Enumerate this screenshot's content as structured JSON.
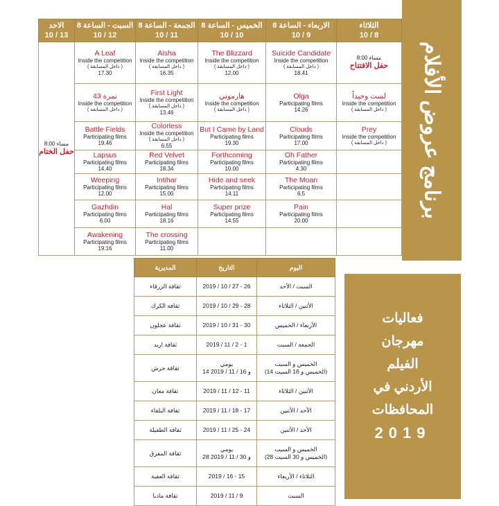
{
  "colors": {
    "gold": "#b8954a",
    "film_title": "#c8202e"
  },
  "side_title": "برنامج عروض الأفلام",
  "festival": {
    "title_lines": [
      "فعاليات",
      "مهرجان",
      "الفيلم",
      "الأردني في",
      "المحافظات"
    ],
    "year": "2019"
  },
  "schedule": {
    "headers": [
      {
        "day": "الاحد",
        "date": "10 / 13"
      },
      {
        "day": "السبت - الساعة 8",
        "date": "10 / 12"
      },
      {
        "day": "الجمعة - الساعة 8",
        "date": "10 / 11"
      },
      {
        "day": "الخميس - الساعة 8",
        "date": "10 / 10"
      },
      {
        "day": "الاربعاء - الساعة 8",
        "date": "10 / 9"
      },
      {
        "day": "الثلاثاء",
        "date": "10 / 8"
      }
    ],
    "closing": {
      "time": "8:00 مساء",
      "label": "حفل الختام"
    },
    "opening": {
      "time": "8:00 مساء",
      "label": "حفل الافتتاح"
    },
    "rows": [
      [
        {
          "title": "A Leaf",
          "cat": "Inside the competition",
          "ar": "( داخل المسابقة )",
          "time": "17.30"
        },
        {
          "title": "Aisha",
          "cat": "Inside the competition",
          "ar": "( داخل المسابقة )",
          "time": "16.35"
        },
        {
          "title": "The Blizzard",
          "cat": "Inside the competition",
          "ar": "( داخل المسابقة )",
          "time": "12.00"
        },
        {
          "title": "Suicide Candidate",
          "cat": "Inside the competition",
          "ar": "( داخل المسابقة )",
          "time": "18.41"
        },
        {
          "opening": true
        }
      ],
      [
        {
          "title": "نمرة 43",
          "cat": "Inside the competition",
          "ar": "( داخل المسابقة )"
        },
        {
          "title": "First Light",
          "cat": "Inside the competition",
          "ar": "( داخل المسابقة )",
          "time": "13.46"
        },
        {
          "title": "هارموني",
          "cat": "Inside the competition",
          "ar": "( داخل المسابقة )"
        },
        {
          "title": "Olga",
          "cat": "Participating films",
          "time": "14.26"
        },
        {
          "title": "لست وحيداً",
          "cat": "Inside the competition",
          "ar": "( داخل المسابقة )"
        }
      ],
      [
        {
          "title": "Battle Fields",
          "cat": "Participating films",
          "time": "19.46"
        },
        {
          "title": "Colorless",
          "cat": "Inside the competition",
          "ar": "( داخل المسابقة )",
          "time": "6.55"
        },
        {
          "title": "But I Came by Land",
          "cat": "Participating films",
          "time": "19.30"
        },
        {
          "title": "Clouds",
          "cat": "Participating films",
          "time": "17.00"
        },
        {
          "title": "Prey",
          "cat": "Inside the competition",
          "ar": "( داخل المسابقة )"
        }
      ],
      [
        {
          "title": "Lapsus",
          "cat": "Participating films",
          "time": "14.40"
        },
        {
          "title": "Red Velvet",
          "cat": "Participating films",
          "time": "18.34"
        },
        {
          "title": "Forthcoming",
          "cat": "Participating films",
          "time": "10.00"
        },
        {
          "title": "Oh Father",
          "cat": "Participating films",
          "time": "4.30"
        },
        {}
      ],
      [
        {
          "title": "Weeping",
          "cat": "Participating films",
          "time": "12.00"
        },
        {
          "title": "Intihar",
          "cat": "Participating films",
          "time": "15.00"
        },
        {
          "title": "Hide and seek",
          "cat": "Participating films",
          "time": "14.11"
        },
        {
          "title": "The Moan",
          "cat": "Participating films",
          "time": "6.5"
        },
        {}
      ],
      [
        {
          "title": "Gazhdin",
          "cat": "Participating films",
          "time": "6.00"
        },
        {
          "title": "Hal",
          "cat": "Participating films",
          "time": "18.16"
        },
        {
          "title": "Super prize",
          "cat": "Participating films",
          "time": "14.55"
        },
        {
          "title": "Pain",
          "cat": "Participating films",
          "time": "20.00"
        },
        {}
      ],
      [
        {
          "title": "Awakening",
          "cat": "Participating films",
          "time": "19.16"
        },
        {
          "title": "The crossing",
          "cat": "Participating films",
          "time": "11.00"
        },
        {},
        {},
        {}
      ]
    ]
  },
  "locations": {
    "headers": [
      "المديرية",
      "التاريخ",
      "اليوم"
    ],
    "rows": [
      [
        "ثقافة الزرقاء",
        "2019 / 10 / 27 - 26",
        "السبت / الأحد"
      ],
      [
        "ثقافة الكرك",
        "2019 / 10 / 29 - 28",
        "الأثنين / الثلاثاء"
      ],
      [
        "ثقافة عجلون",
        "2019 / 10 / 31 - 30",
        "الأربعاء / الخميس"
      ],
      [
        "ثقافة اربد",
        "2019 / 11 / 2 - 1",
        "الجمعة / السبت"
      ],
      [
        "ثقافة جرش",
        "يومي\n14 و 16 / 11 / 2019",
        "الخميس و السبت\n(14 الخميس و 16 السبت)"
      ],
      [
        "ثقافة معان",
        "2019 / 11 / 12 - 11",
        "الأثنين / الثلاثاء"
      ],
      [
        "ثقافة البلقاء",
        "2019 / 11 / 18 - 17",
        "الأحد / الأثنين"
      ],
      [
        "ثقافة الطفيلة",
        "2019 / 11 / 25 - 24",
        "الأحد / الأثنين"
      ],
      [
        "ثقافة المفرق",
        "يومي\n28 و 30 / 11 / 2019",
        "الخميس و السبت\n(28 الخميس و 30 السبت)"
      ],
      [
        "ثقافة العقبة",
        "2019 / 16 - 15",
        "الثلاثاء / الأربعاء"
      ],
      [
        "ثقافة مادبا",
        "2019 / 11 / 9",
        "السبت"
      ]
    ]
  }
}
